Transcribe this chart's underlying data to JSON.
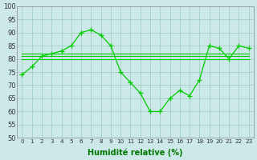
{
  "hours": [
    0,
    1,
    2,
    3,
    4,
    5,
    6,
    7,
    8,
    9,
    10,
    11,
    12,
    13,
    14,
    15,
    16,
    17,
    18,
    19,
    20,
    21,
    22,
    23
  ],
  "y_main": [
    74,
    77,
    81,
    82,
    83,
    85,
    90,
    91,
    89,
    85,
    75,
    71,
    67,
    60,
    60,
    65,
    68,
    66,
    72,
    85,
    84,
    80,
    85,
    84
  ],
  "y_flat1": [
    81,
    81,
    81,
    81,
    81,
    81,
    81,
    81,
    81,
    81,
    81,
    81,
    81,
    81,
    81,
    81,
    81,
    81,
    81,
    81,
    81,
    81,
    81,
    81
  ],
  "y_flat2": [
    82,
    82,
    82,
    82,
    82,
    82,
    82,
    82,
    82,
    82,
    82,
    82,
    82,
    82,
    82,
    82,
    82,
    82,
    82,
    82,
    82,
    82,
    82,
    82
  ],
  "y_flat3": [
    80,
    80,
    80,
    80,
    80,
    80,
    80,
    80,
    80,
    80,
    80,
    80,
    80,
    80,
    80,
    80,
    80,
    80,
    80,
    80,
    80,
    80,
    80,
    80
  ],
  "line_color": "#00cc00",
  "bg_color": "#cce8e8",
  "grid_color": "#99ccbb",
  "xlabel_color": "#007700",
  "xlabel": "Humidité relative (%)",
  "ylim": [
    50,
    100
  ],
  "yticks": [
    50,
    55,
    60,
    65,
    70,
    75,
    80,
    85,
    90,
    95,
    100
  ]
}
